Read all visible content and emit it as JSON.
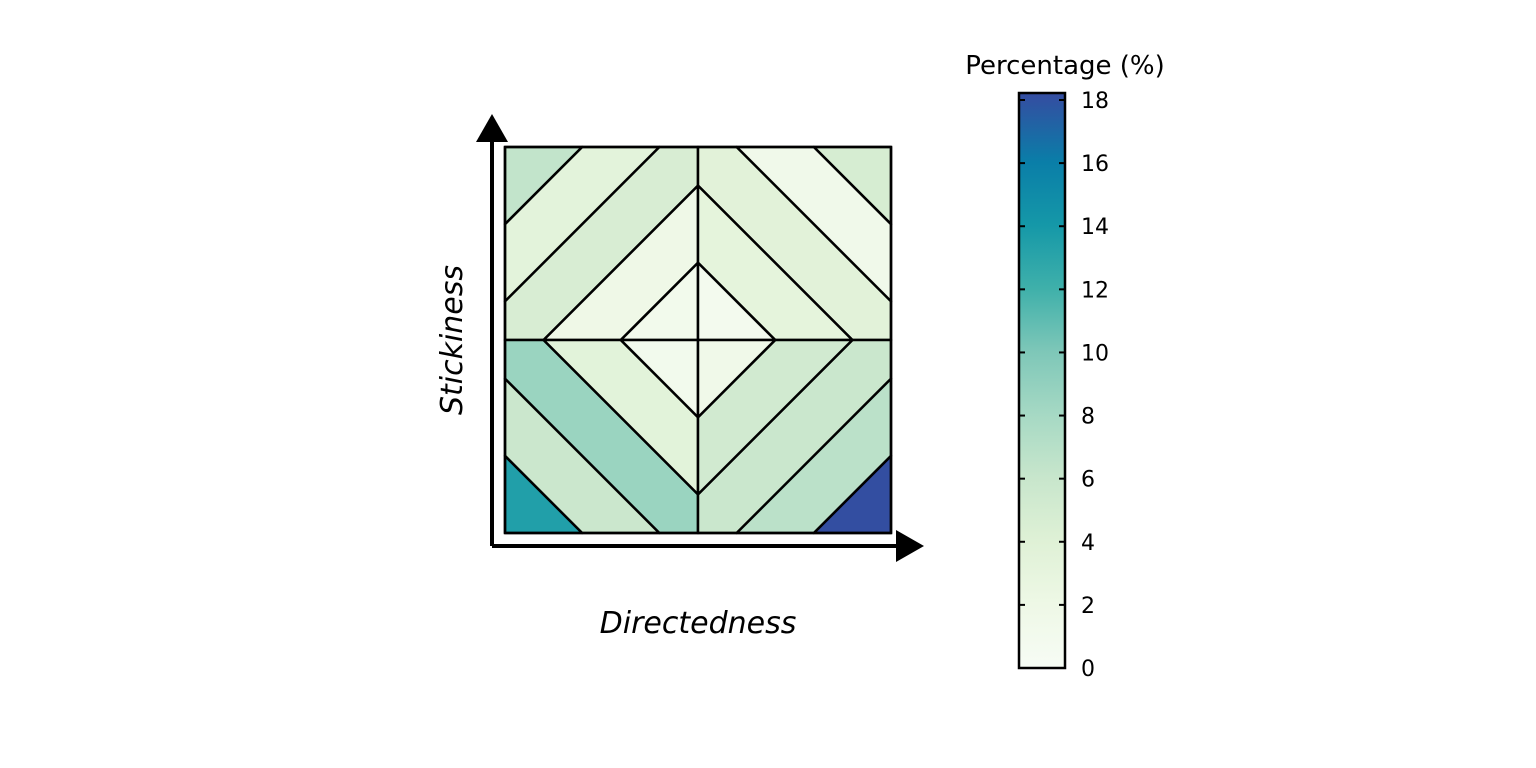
{
  "chart_data": {
    "type": "heatmap",
    "xlabel": "Directedness",
    "ylabel": "Stickiness",
    "grid": "2x2 quadrants, each split into 5 diagonal bands",
    "quadrants": [
      {
        "position": "top-left",
        "diagonal": "anti",
        "values": [
          6.3,
          3.4,
          4.6,
          1.8,
          1.2
        ]
      },
      {
        "position": "top-right",
        "diagonal": "main",
        "values": [
          4.7,
          1.5,
          3.6,
          3.2,
          0.9
        ]
      },
      {
        "position": "bottom-left",
        "diagonal": "main",
        "values": [
          13.3,
          5.7,
          8.5,
          3.5,
          1.0
        ]
      },
      {
        "position": "bottom-right",
        "diagonal": "anti",
        "values": [
          17.9,
          6.7,
          5.8,
          5.2,
          1.6
        ]
      }
    ],
    "colorbar": {
      "title": "Percentage (%)",
      "min": 0,
      "max": 18,
      "ticks": [
        "0",
        "2",
        "4",
        "6",
        "8",
        "10",
        "12",
        "14",
        "16",
        "18"
      ],
      "colors": [
        "#f7fcf0",
        "#e0f3db",
        "#ccebc5",
        "#a8ddb5",
        "#7bccc4",
        "#4eb3d3",
        "#2b8cbe",
        "#0868ac",
        "#084081",
        "#354ca1"
      ]
    }
  }
}
